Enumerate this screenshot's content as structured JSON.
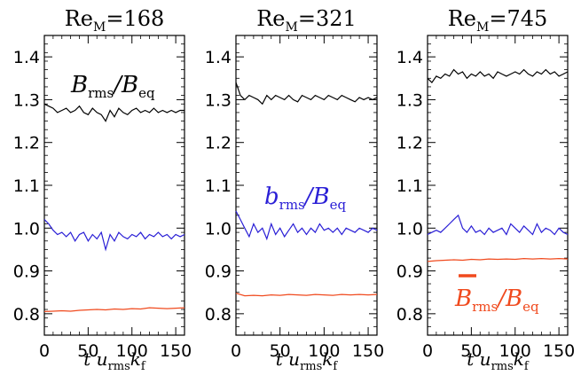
{
  "chart_data": [
    {
      "type": "line",
      "title": "Re_M=168",
      "title_main": "Re",
      "title_sub": "M",
      "title_rest": "=168",
      "xlabel": "t u_rms k_f",
      "xlim": [
        0,
        160
      ],
      "ylim": [
        0.75,
        1.45
      ],
      "xticks": [
        "0",
        "50",
        "100",
        "150"
      ],
      "yticks": [
        "0.8",
        "0.9",
        "1.0",
        "1.1",
        "1.2",
        "1.3",
        "1.4"
      ],
      "colors": {
        "black": "#000000",
        "blue": "#2a1fd6",
        "red": "#f04a1e"
      },
      "series": [
        {
          "color": "black",
          "x": [
            0,
            5,
            10,
            15,
            20,
            25,
            30,
            35,
            40,
            45,
            50,
            55,
            60,
            65,
            70,
            75,
            80,
            85,
            90,
            95,
            100,
            105,
            110,
            115,
            120,
            125,
            130,
            135,
            140,
            145,
            150,
            155,
            160
          ],
          "values": [
            1.29,
            1.285,
            1.28,
            1.27,
            1.275,
            1.28,
            1.27,
            1.275,
            1.285,
            1.27,
            1.265,
            1.28,
            1.27,
            1.265,
            1.25,
            1.275,
            1.26,
            1.28,
            1.27,
            1.265,
            1.275,
            1.28,
            1.27,
            1.275,
            1.27,
            1.28,
            1.27,
            1.275,
            1.27,
            1.275,
            1.27,
            1.275,
            1.275
          ]
        },
        {
          "color": "blue",
          "x": [
            0,
            5,
            10,
            15,
            20,
            25,
            30,
            35,
            40,
            45,
            50,
            55,
            60,
            65,
            70,
            75,
            80,
            85,
            90,
            95,
            100,
            105,
            110,
            115,
            120,
            125,
            130,
            135,
            140,
            145,
            150,
            155,
            160
          ],
          "values": [
            1.02,
            1.01,
            0.995,
            0.985,
            0.99,
            0.98,
            0.99,
            0.97,
            0.985,
            0.99,
            0.97,
            0.985,
            0.975,
            0.99,
            0.95,
            0.985,
            0.97,
            0.99,
            0.98,
            0.975,
            0.985,
            0.98,
            0.99,
            0.975,
            0.985,
            0.98,
            0.99,
            0.98,
            0.985,
            0.975,
            0.985,
            0.98,
            0.985
          ]
        },
        {
          "color": "red",
          "x": [
            0,
            10,
            20,
            30,
            40,
            50,
            60,
            70,
            80,
            90,
            100,
            110,
            120,
            130,
            140,
            150,
            160
          ],
          "values": [
            0.805,
            0.806,
            0.807,
            0.806,
            0.808,
            0.809,
            0.81,
            0.809,
            0.811,
            0.81,
            0.812,
            0.811,
            0.814,
            0.813,
            0.812,
            0.813,
            0.814
          ]
        }
      ]
    },
    {
      "type": "line",
      "title": "Re_M=321",
      "title_main": "Re",
      "title_sub": "M",
      "title_rest": "=321",
      "xlabel": "t u_rms k_f",
      "xlim": [
        0,
        160
      ],
      "ylim": [
        0.75,
        1.45
      ],
      "xticks": [
        "0",
        "50",
        "100",
        "150"
      ],
      "yticks": [
        "0.8",
        "0.9",
        "1.0",
        "1.1",
        "1.2",
        "1.3",
        "1.4"
      ],
      "colors": {
        "black": "#000000",
        "blue": "#2a1fd6",
        "red": "#f04a1e"
      },
      "series": [
        {
          "color": "black",
          "x": [
            0,
            5,
            10,
            15,
            20,
            25,
            30,
            35,
            40,
            45,
            50,
            55,
            60,
            65,
            70,
            75,
            80,
            85,
            90,
            95,
            100,
            105,
            110,
            115,
            120,
            125,
            130,
            135,
            140,
            145,
            150,
            155,
            160
          ],
          "values": [
            1.34,
            1.31,
            1.3,
            1.31,
            1.305,
            1.3,
            1.29,
            1.31,
            1.3,
            1.31,
            1.305,
            1.3,
            1.31,
            1.3,
            1.295,
            1.31,
            1.305,
            1.3,
            1.31,
            1.305,
            1.3,
            1.31,
            1.305,
            1.3,
            1.31,
            1.305,
            1.3,
            1.295,
            1.305,
            1.3,
            1.305,
            1.3,
            1.305
          ]
        },
        {
          "color": "blue",
          "x": [
            0,
            5,
            10,
            15,
            20,
            25,
            30,
            35,
            40,
            45,
            50,
            55,
            60,
            65,
            70,
            75,
            80,
            85,
            90,
            95,
            100,
            105,
            110,
            115,
            120,
            125,
            130,
            135,
            140,
            145,
            150,
            155,
            160
          ],
          "values": [
            1.04,
            1.02,
            1.0,
            0.98,
            1.01,
            0.99,
            1.0,
            0.975,
            1.01,
            0.985,
            1.0,
            0.98,
            0.995,
            1.01,
            0.99,
            1.0,
            0.985,
            1.0,
            0.99,
            1.01,
            0.995,
            1.0,
            0.99,
            1.0,
            0.985,
            1.0,
            0.995,
            0.99,
            1.0,
            0.995,
            0.99,
            1.0,
            0.995
          ]
        },
        {
          "color": "red",
          "x": [
            0,
            10,
            20,
            30,
            40,
            50,
            60,
            70,
            80,
            90,
            100,
            110,
            120,
            130,
            140,
            150,
            160
          ],
          "values": [
            0.848,
            0.842,
            0.843,
            0.842,
            0.844,
            0.843,
            0.845,
            0.844,
            0.843,
            0.845,
            0.844,
            0.843,
            0.845,
            0.844,
            0.845,
            0.844,
            0.845
          ]
        }
      ]
    },
    {
      "type": "line",
      "title": "Re_M=745",
      "title_main": "Re",
      "title_sub": "M",
      "title_rest": "=745",
      "xlabel": "t u_rms k_f",
      "xlim": [
        0,
        160
      ],
      "ylim": [
        0.75,
        1.45
      ],
      "xticks": [
        "0",
        "50",
        "100",
        "150"
      ],
      "yticks": [
        "0.8",
        "0.9",
        "1.0",
        "1.1",
        "1.2",
        "1.3",
        "1.4"
      ],
      "colors": {
        "black": "#000000",
        "blue": "#2a1fd6",
        "red": "#f04a1e"
      },
      "series": [
        {
          "color": "black",
          "x": [
            0,
            5,
            10,
            15,
            20,
            25,
            30,
            35,
            40,
            45,
            50,
            55,
            60,
            65,
            70,
            75,
            80,
            85,
            90,
            95,
            100,
            105,
            110,
            115,
            120,
            125,
            130,
            135,
            140,
            145,
            150,
            155,
            160
          ],
          "values": [
            1.35,
            1.34,
            1.355,
            1.35,
            1.36,
            1.355,
            1.37,
            1.36,
            1.365,
            1.35,
            1.36,
            1.355,
            1.365,
            1.355,
            1.36,
            1.35,
            1.365,
            1.36,
            1.355,
            1.36,
            1.365,
            1.36,
            1.37,
            1.36,
            1.355,
            1.365,
            1.36,
            1.37,
            1.36,
            1.365,
            1.355,
            1.36,
            1.365
          ]
        },
        {
          "color": "blue",
          "x": [
            0,
            5,
            10,
            15,
            20,
            25,
            30,
            35,
            40,
            45,
            50,
            55,
            60,
            65,
            70,
            75,
            80,
            85,
            90,
            95,
            100,
            105,
            110,
            115,
            120,
            125,
            130,
            135,
            140,
            145,
            150,
            155,
            160
          ],
          "values": [
            0.985,
            0.99,
            0.995,
            0.99,
            1.0,
            1.01,
            1.02,
            1.03,
            1.0,
            0.99,
            1.005,
            0.99,
            0.995,
            0.985,
            1.0,
            0.99,
            0.995,
            1.0,
            0.985,
            1.01,
            1.0,
            0.99,
            1.005,
            0.995,
            0.985,
            1.01,
            0.99,
            1.0,
            0.995,
            0.985,
            1.0,
            0.99,
            0.985
          ]
        },
        {
          "color": "red",
          "x": [
            0,
            10,
            20,
            30,
            40,
            50,
            60,
            70,
            80,
            90,
            100,
            110,
            120,
            130,
            140,
            150,
            160
          ],
          "values": [
            0.922,
            0.924,
            0.925,
            0.926,
            0.925,
            0.927,
            0.926,
            0.928,
            0.927,
            0.928,
            0.927,
            0.929,
            0.928,
            0.929,
            0.928,
            0.929,
            0.928
          ]
        }
      ]
    }
  ],
  "annotations": {
    "brms_main": "B",
    "brms_sub": "rms",
    "beq_main": "/B",
    "beq_sub": "eq",
    "small_b_main": "b",
    "small_b_sub": "rms",
    "small_beq_main": "/B",
    "small_beq_sub": "eq",
    "mean_b_main": "B",
    "mean_b_sub": "rms",
    "mean_beq_main": "/B",
    "mean_beq_sub": "eq"
  },
  "xlabel_parts": {
    "t": "t",
    "u": "u",
    "u_sub": "rms",
    "k": "k",
    "k_sub": "f"
  }
}
